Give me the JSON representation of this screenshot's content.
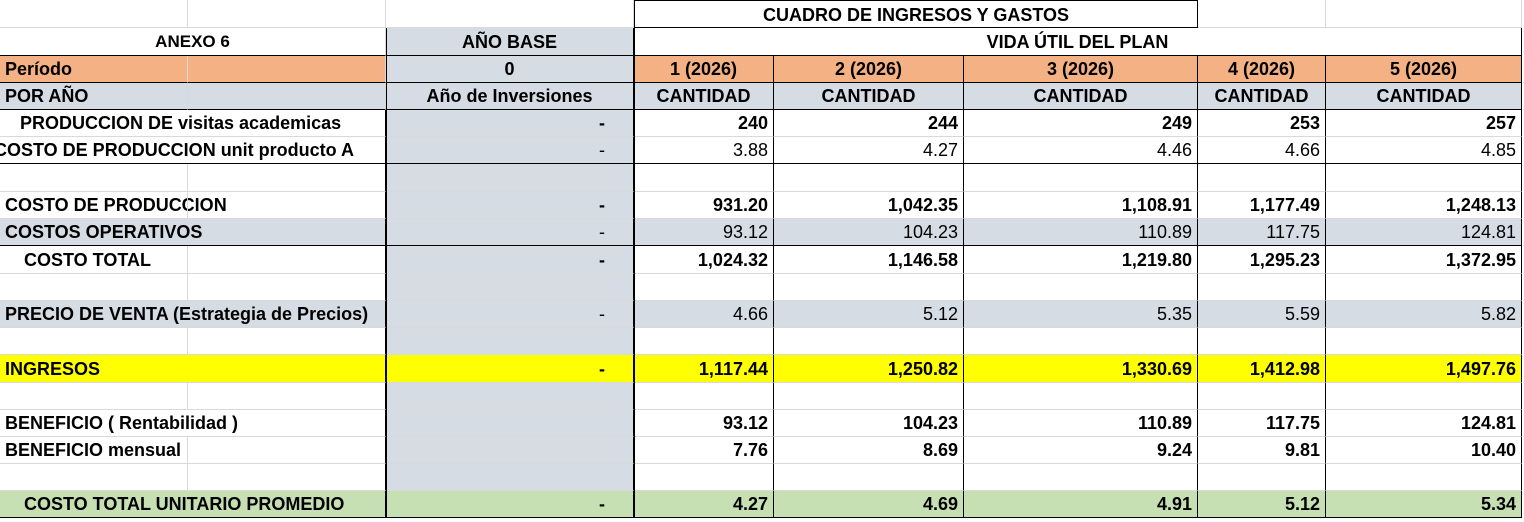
{
  "title": "CUADRO DE INGRESOS Y GASTOS",
  "annex": "ANEXO 6",
  "base_year_header": "AÑO BASE",
  "plan_life_header": "VIDA ÚTIL DEL PLAN",
  "colors": {
    "orange_header": "#F4B183",
    "grey_blue": "#D6DCE4",
    "yellow": "#FFFF00",
    "green": "#C6E0B4",
    "grid": "#D9D9D9"
  },
  "period_row": {
    "label": "Período",
    "base": "0",
    "years": [
      "1 (2026)",
      "2 (2026)",
      "3 (2026)",
      "4 (2026)",
      "5 (2026)"
    ]
  },
  "subheader_row": {
    "label": "POR AÑO",
    "base": "Año de Inversiones",
    "years": [
      "CANTIDAD",
      "CANTIDAD",
      "CANTIDAD",
      "CANTIDAD",
      "CANTIDAD"
    ]
  },
  "rows": [
    {
      "label": "PRODUCCION DE visitas academicas",
      "base": "-",
      "values": [
        "240",
        "244",
        "249",
        "253",
        "257"
      ]
    },
    {
      "label": "COSTO DE PRODUCCION  unit  producto A",
      "base": "-",
      "values": [
        "3.88",
        "4.27",
        "4.46",
        "4.66",
        "4.85"
      ]
    },
    {
      "label": "",
      "base": "",
      "values": [
        "",
        "",
        "",
        "",
        ""
      ]
    },
    {
      "label": "COSTO DE PRODUCCION",
      "base": "-",
      "values": [
        "931.20",
        "1,042.35",
        "1,108.91",
        "1,177.49",
        "1,248.13"
      ]
    },
    {
      "label": "COSTOS OPERATIVOS",
      "base": "-",
      "values": [
        "93.12",
        "104.23",
        "110.89",
        "117.75",
        "124.81"
      ]
    },
    {
      "label": "COSTO TOTAL",
      "base": "-",
      "values": [
        "1,024.32",
        "1,146.58",
        "1,219.80",
        "1,295.23",
        "1,372.95"
      ]
    },
    {
      "label": "",
      "base": "",
      "values": [
        "",
        "",
        "",
        "",
        ""
      ]
    },
    {
      "label": "PRECIO DE VENTA  (Estrategia de Precios)",
      "base": "-",
      "values": [
        "4.66",
        "5.12",
        "5.35",
        "5.59",
        "5.82"
      ]
    },
    {
      "label": "",
      "base": "",
      "values": [
        "",
        "",
        "",
        "",
        ""
      ]
    },
    {
      "label": "INGRESOS",
      "base": "-",
      "values": [
        "1,117.44",
        "1,250.82",
        "1,330.69",
        "1,412.98",
        "1,497.76"
      ]
    },
    {
      "label": "",
      "base": "",
      "values": [
        "",
        "",
        "",
        "",
        ""
      ]
    },
    {
      "label": "BENEFICIO ( Rentabilidad )",
      "base": "",
      "values": [
        "93.12",
        "104.23",
        "110.89",
        "117.75",
        "124.81"
      ]
    },
    {
      "label": "BENEFICIO mensual",
      "base": "",
      "values": [
        "7.76",
        "8.69",
        "9.24",
        "9.81",
        "10.40"
      ]
    },
    {
      "label": "",
      "base": "",
      "values": [
        "",
        "",
        "",
        "",
        ""
      ]
    },
    {
      "label": "COSTO TOTAL UNITARIO PROMEDIO",
      "base": "-",
      "values": [
        "4.27",
        "4.69",
        "4.91",
        "5.12",
        "5.34"
      ]
    }
  ]
}
